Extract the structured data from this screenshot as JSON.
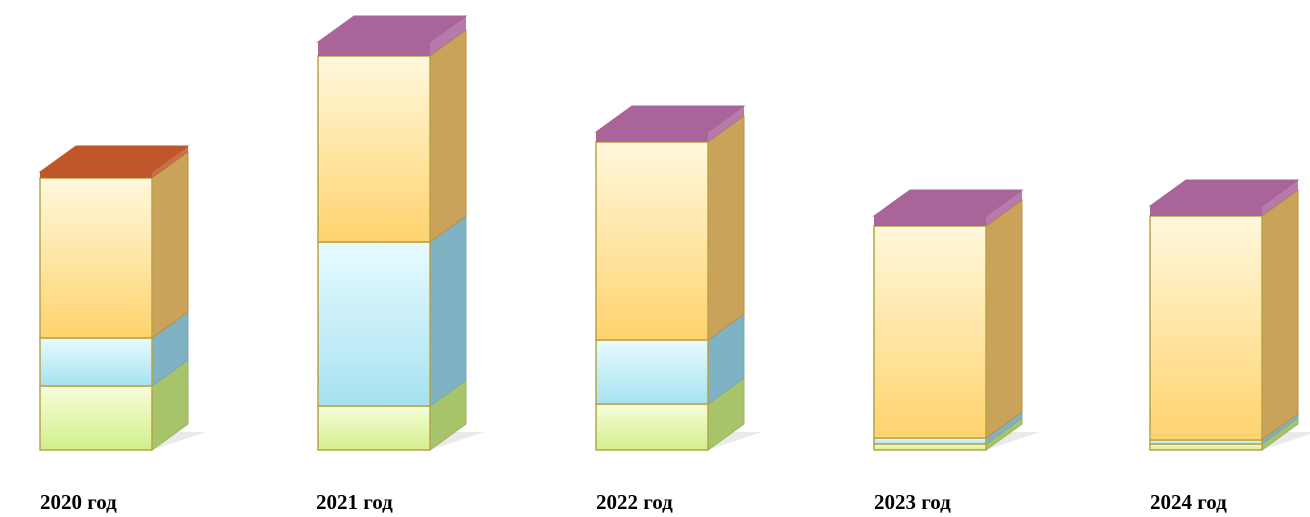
{
  "chart_data": {
    "type": "bar",
    "stacked": true,
    "style": "3d",
    "categories": [
      "2020 год",
      "2021 год",
      "2022 год",
      "2023 год",
      "2024 год"
    ],
    "series": [
      {
        "color": "#d9f49a",
        "values": [
          64,
          44,
          46,
          6,
          6
        ]
      },
      {
        "color": "#a8e4f2",
        "values": [
          48,
          164,
          64,
          6,
          4
        ]
      },
      {
        "color": "#ffd87a",
        "values": [
          160,
          186,
          198,
          212,
          224
        ]
      },
      {
        "top_colors": [
          "#c0572a",
          "#a9649a",
          "#a9649a",
          "#a9649a",
          "#a9649a"
        ],
        "values": [
          6,
          14,
          10,
          10,
          10
        ]
      }
    ],
    "legend": "none",
    "grid": false
  }
}
